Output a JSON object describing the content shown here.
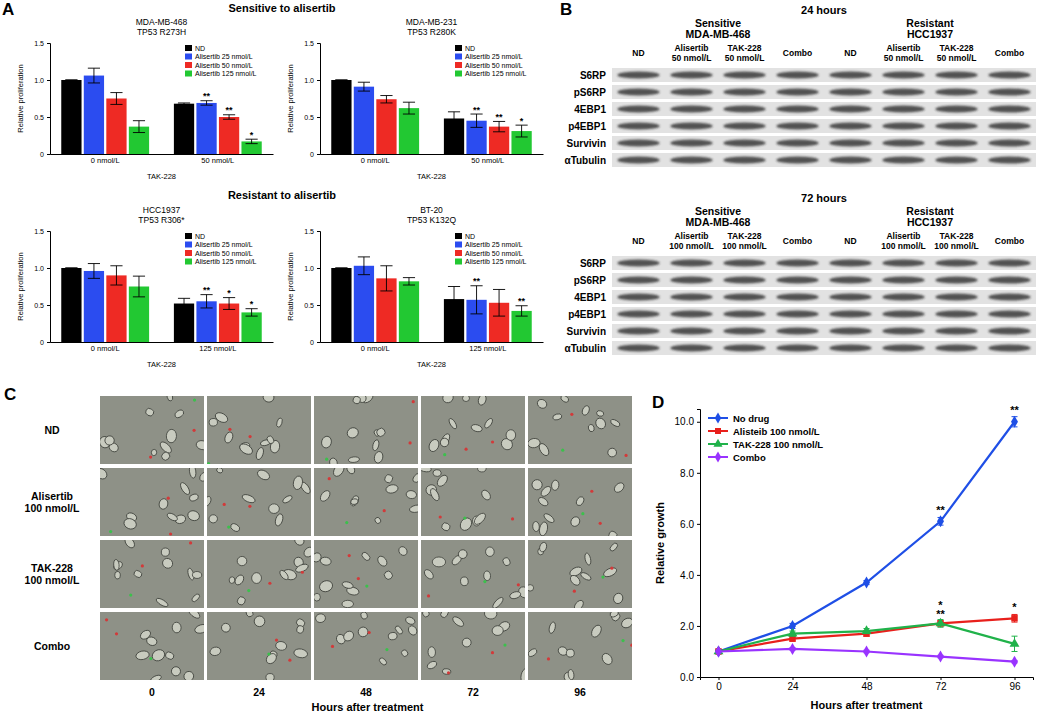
{
  "chart_data": [
    {
      "type": "bar",
      "title": "MDA-MB-468",
      "subtitle": "TP53 R273H",
      "x_label": "TAK-228",
      "y_label": "Relative proliferation",
      "categories": [
        "0 nmol/L",
        "50 nmol/L"
      ],
      "ylim": [
        0,
        1.5
      ],
      "yticks": [
        0,
        0.5,
        {
          "value": 1,
          "label": "1.0"
        },
        1.5
      ],
      "legend": "top-right",
      "series": [
        {
          "name": "ND",
          "color": "#000000",
          "values": [
            1.0,
            0.68
          ],
          "errors": [
            0,
            0.01
          ],
          "annotations": [
            null,
            null
          ]
        },
        {
          "name": "Alisertib 25 nmol/L",
          "color": "#2b4cf0",
          "values": [
            1.06,
            0.69
          ],
          "errors": [
            0.1,
            0.03
          ],
          "annotations": [
            null,
            "**"
          ]
        },
        {
          "name": "Alisertib 50 nmol/L",
          "color": "#ee2a24",
          "values": [
            0.75,
            0.5
          ],
          "errors": [
            0.08,
            0.03
          ],
          "annotations": [
            null,
            "**"
          ]
        },
        {
          "name": "Alisertib 125 nmol/L",
          "color": "#22c832",
          "values": [
            0.37,
            0.17
          ],
          "errors": [
            0.08,
            0.03
          ],
          "annotations": [
            null,
            "*"
          ]
        }
      ]
    },
    {
      "type": "bar",
      "title": "MDA-MB-231",
      "subtitle": "TP53 R280K",
      "x_label": "TAK-228",
      "y_label": "Relative proliferation",
      "categories": [
        "0 nmol/L",
        "50 nmol/L"
      ],
      "ylim": [
        0,
        1.5
      ],
      "yticks": [
        0,
        0.5,
        {
          "value": 1,
          "label": "1.0"
        },
        1.5
      ],
      "legend": "top-right",
      "series": [
        {
          "name": "ND",
          "color": "#000000",
          "values": [
            1.0,
            0.48
          ],
          "errors": [
            0,
            0.09
          ],
          "annotations": [
            null,
            null
          ]
        },
        {
          "name": "Alisertib 25 nmol/L",
          "color": "#2b4cf0",
          "values": [
            0.91,
            0.45
          ],
          "errors": [
            0.06,
            0.09
          ],
          "annotations": [
            null,
            "**"
          ]
        },
        {
          "name": "Alisertib 50 nmol/L",
          "color": "#ee2a24",
          "values": [
            0.74,
            0.37
          ],
          "errors": [
            0.05,
            0.07
          ],
          "annotations": [
            null,
            "**"
          ]
        },
        {
          "name": "Alisertib 125 nmol/L",
          "color": "#22c832",
          "values": [
            0.62,
            0.31
          ],
          "errors": [
            0.08,
            0.08
          ],
          "annotations": [
            null,
            "*"
          ]
        }
      ]
    },
    {
      "type": "bar",
      "title": "HCC1937",
      "subtitle": "TP53 R306*",
      "x_label": "TAK-228",
      "y_label": "Relative proliferation",
      "categories": [
        "0 nmol/L",
        "125 nmol/L"
      ],
      "ylim": [
        0,
        1.5
      ],
      "yticks": [
        0,
        0.5,
        {
          "value": 1,
          "label": "1.0"
        },
        1.5
      ],
      "legend": "top-right",
      "series": [
        {
          "name": "ND",
          "color": "#000000",
          "values": [
            1.0,
            0.52
          ],
          "errors": [
            0,
            0.07
          ],
          "annotations": [
            null,
            null
          ]
        },
        {
          "name": "Alisertib 25 nmol/L",
          "color": "#2b4cf0",
          "values": [
            0.96,
            0.55
          ],
          "errors": [
            0.1,
            0.09
          ],
          "annotations": [
            null,
            "**"
          ]
        },
        {
          "name": "Alisertib 50 nmol/L",
          "color": "#ee2a24",
          "values": [
            0.9,
            0.52
          ],
          "errors": [
            0.13,
            0.08
          ],
          "annotations": [
            null,
            "*"
          ]
        },
        {
          "name": "Alisertib 125 nmol/L",
          "color": "#22c832",
          "values": [
            0.75,
            0.4
          ],
          "errors": [
            0.14,
            0.05
          ],
          "annotations": [
            null,
            "*"
          ]
        }
      ]
    },
    {
      "type": "bar",
      "title": "BT-20",
      "subtitle": "TP53 K132Q",
      "x_label": "TAK-228",
      "y_label": "Relative proliferation",
      "categories": [
        "0 nmol/L",
        "125 nmol/L"
      ],
      "ylim": [
        0,
        1.5
      ],
      "yticks": [
        0,
        0.5,
        {
          "value": 1,
          "label": "1.0"
        },
        1.5
      ],
      "legend": "top-right",
      "series": [
        {
          "name": "ND",
          "color": "#000000",
          "values": [
            1.0,
            0.58
          ],
          "errors": [
            0,
            0.17
          ],
          "annotations": [
            null,
            null
          ]
        },
        {
          "name": "Alisertib 25 nmol/L",
          "color": "#2b4cf0",
          "values": [
            1.03,
            0.57
          ],
          "errors": [
            0.12,
            0.19
          ],
          "annotations": [
            null,
            "**"
          ]
        },
        {
          "name": "Alisertib 50 nmol/L",
          "color": "#ee2a24",
          "values": [
            0.86,
            0.53
          ],
          "errors": [
            0.17,
            0.18
          ],
          "annotations": [
            null,
            null
          ]
        },
        {
          "name": "Alisertib 125 nmol/L",
          "color": "#22c832",
          "values": [
            0.82,
            0.42
          ],
          "errors": [
            0.05,
            0.07
          ],
          "annotations": [
            null,
            "**"
          ]
        }
      ]
    },
    {
      "type": "line",
      "x_label": "Hours after treatment",
      "y_label": "Relative growth",
      "x": [
        0,
        24,
        48,
        72,
        96
      ],
      "xlim": [
        -6,
        102
      ],
      "xticks": [
        0,
        24,
        48,
        72,
        96
      ],
      "ylim": [
        0,
        10.5
      ],
      "yticks": [
        {
          "value": 0,
          "label": "0.0"
        },
        {
          "value": 2,
          "label": "2.0"
        },
        {
          "value": 4,
          "label": "4.0"
        },
        {
          "value": 6,
          "label": "6.0"
        },
        {
          "value": 8,
          "label": "8.0"
        },
        {
          "value": 10,
          "label": "10.0"
        }
      ],
      "legend": "top-left",
      "series": [
        {
          "name": "No drug",
          "color": "#1f4fe6",
          "marker": "diamond",
          "values": [
            1.0,
            2.0,
            3.7,
            6.1,
            10.0
          ],
          "errors": [
            0.05,
            0.1,
            0.08,
            0.15,
            0.2
          ],
          "annotations": [
            null,
            null,
            null,
            "**",
            "**"
          ]
        },
        {
          "name": "Alisteib 100 nmol/L",
          "color": "#e8201c",
          "marker": "square",
          "values": [
            1.0,
            1.5,
            1.7,
            2.1,
            2.3
          ],
          "errors": [
            0.05,
            0.08,
            0.1,
            0.1,
            0.15
          ],
          "annotations": [
            null,
            null,
            null,
            "**",
            "*"
          ]
        },
        {
          "name": "TAK-228 100 nmol/L",
          "color": "#20b24a",
          "marker": "triangle",
          "values": [
            1.0,
            1.7,
            1.8,
            2.1,
            1.3
          ],
          "errors": [
            0.05,
            0.1,
            0.1,
            0.15,
            0.3
          ],
          "annotations": [
            null,
            null,
            null,
            "*",
            null
          ]
        },
        {
          "name": "Combo",
          "color": "#9933ff",
          "marker": "diamond",
          "values": [
            1.0,
            1.1,
            1.0,
            0.8,
            0.6
          ],
          "errors": [
            0.05,
            0.05,
            0.05,
            0.05,
            0.05
          ],
          "annotations": [
            null,
            null,
            null,
            null,
            null
          ]
        }
      ]
    }
  ],
  "figure": {
    "panel_labels": [
      "A",
      "B",
      "C",
      "D"
    ],
    "panel_a_groups": [
      "Sensitive to alisertib",
      "Resistant to alisertib"
    ],
    "blots": [
      {
        "time": "24 hours",
        "groups": [
          {
            "sensitivity": "Sensitive",
            "cell_line": "MDA-MB-468"
          },
          {
            "sensitivity": "Resistant",
            "cell_line": "HCC1937"
          }
        ],
        "lanes": [
          [
            "ND"
          ],
          [
            "Alisertib",
            "50 nmol/L"
          ],
          [
            "TAK-228",
            "50 nmol/L"
          ],
          [
            "Combo"
          ]
        ],
        "proteins": [
          "S6RP",
          "pS6RP",
          "4EBP1",
          "p4EBP1",
          "Survivin",
          "αTubulin"
        ]
      },
      {
        "time": "72 hours",
        "groups": [
          {
            "sensitivity": "Sensitive",
            "cell_line": "MDA-MB-468"
          },
          {
            "sensitivity": "Resistant",
            "cell_line": "HCC1937"
          }
        ],
        "lanes": [
          [
            "ND"
          ],
          [
            "Alisertib",
            "100 nmol/L"
          ],
          [
            "TAK-228",
            "100 nmol/L"
          ],
          [
            "Combo"
          ]
        ],
        "proteins": [
          "S6RP",
          "pS6RP",
          "4EBP1",
          "p4EBP1",
          "Survivin",
          "αTubulin"
        ]
      }
    ],
    "micrographs": {
      "rows": [
        [
          "ND"
        ],
        [
          "Alisertib",
          "100 nmol/L"
        ],
        [
          "TAK-228",
          "100 nmol/L"
        ],
        [
          "Combo"
        ]
      ],
      "columns": [
        0,
        24,
        48,
        72,
        96
      ],
      "x_label": "Hours after treatment"
    }
  }
}
